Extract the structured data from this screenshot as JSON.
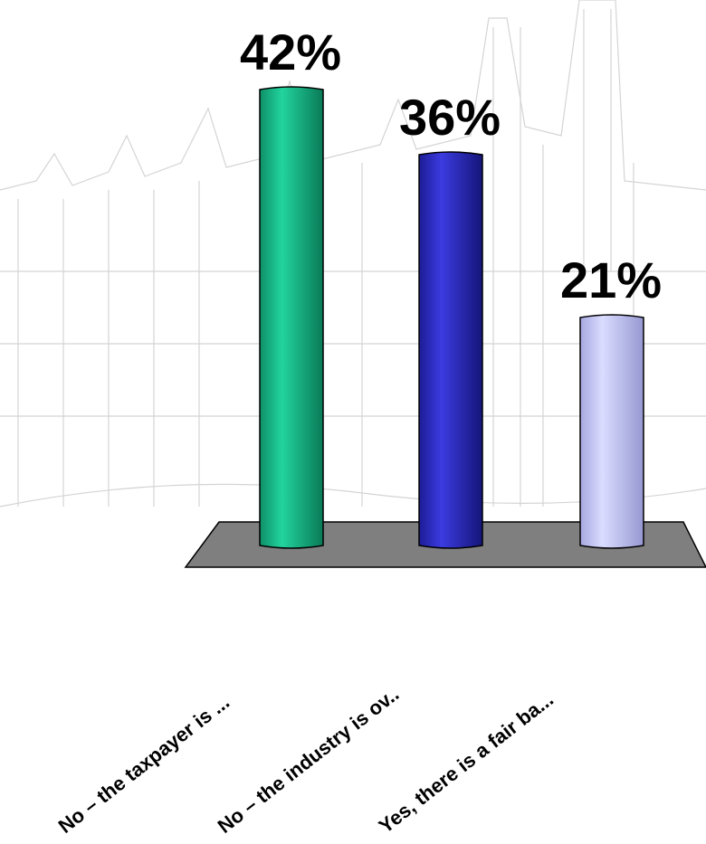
{
  "chart_data": {
    "type": "bar",
    "categories": [
      "No – the taxpayer is ...",
      "No – the industry is ov..",
      "Yes, there is a fair ba..."
    ],
    "values": [
      42,
      36,
      21
    ],
    "value_labels": [
      "42%",
      "36%",
      "21%"
    ],
    "ylim": [
      0,
      45
    ],
    "grid": false,
    "legend": "none",
    "colors": [
      "#1bbf8e",
      "#2f2fc8",
      "#c2c4f2"
    ]
  }
}
